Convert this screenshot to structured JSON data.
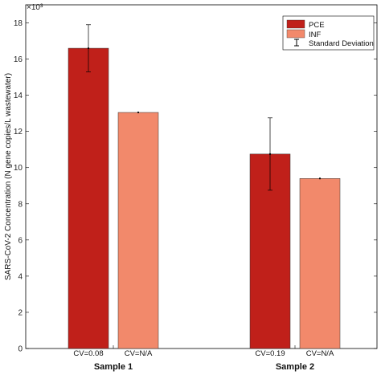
{
  "chart_data": {
    "type": "bar",
    "ylabel": "SARS-CoV-2 Concentration (N gene copies/L wastewater)",
    "exponent_label": "×10³",
    "ylim": [
      0,
      19
    ],
    "yticks": [
      0,
      2,
      4,
      6,
      8,
      10,
      12,
      14,
      16,
      18
    ],
    "groups": [
      {
        "label": "Sample 1",
        "cv_labels": [
          "CV=0.08",
          "CV=N/A"
        ]
      },
      {
        "label": "Sample 2",
        "cv_labels": [
          "CV=0.19",
          "CV=N/A"
        ]
      }
    ],
    "series": [
      {
        "name": "PCE",
        "color": "#c0201a",
        "values": [
          16.6,
          10.75
        ],
        "error": [
          1.3,
          2.0
        ]
      },
      {
        "name": "INF",
        "color": "#f2896b",
        "values": [
          13.05,
          9.4
        ],
        "error": [
          0,
          0
        ]
      }
    ],
    "legend": {
      "position": "top-right",
      "entries": [
        "PCE",
        "INF",
        "Standard Deviation"
      ]
    }
  }
}
